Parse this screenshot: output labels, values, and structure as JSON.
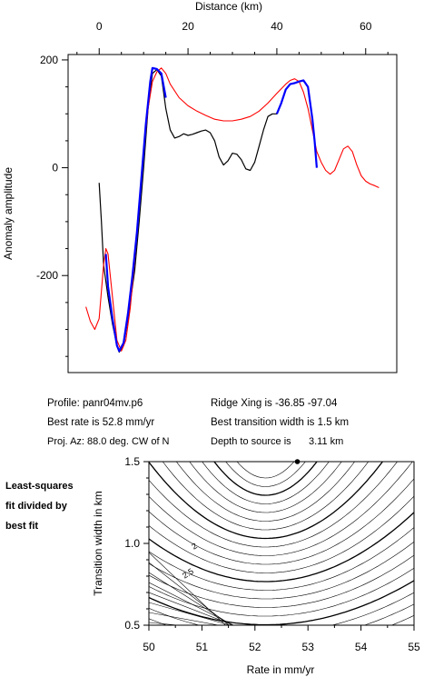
{
  "info": {
    "profile": "Profile: panr04mv.p6",
    "best_rate": "Best rate is 52.8 mm/yr",
    "proj_az": "Proj. Az: 88.0 deg. CW of N",
    "ridge_xing": "Ridge Xing is -36.85 -97.04",
    "best_width": "Best transition width is 1.5 km",
    "depth_label": "Depth to source is",
    "depth_value": "3.11 km"
  },
  "note": {
    "line1": "Least-squares",
    "line2": "fit divided by",
    "line3": "best fit"
  },
  "colors": {
    "observed": "#000000",
    "model": "#ff0000",
    "fit_window": "#0000ff",
    "contour": "#000000"
  },
  "chart_data": [
    {
      "type": "line",
      "title": "",
      "xlabel": "Distance (km)",
      "ylabel": "Anomaly amplitude",
      "xlim": [
        -7,
        67
      ],
      "ylim": [
        -380,
        210
      ],
      "xticks": [
        0,
        20,
        40,
        60
      ],
      "yticks": [
        200,
        0,
        -200
      ],
      "x_axis_position": "top",
      "series": [
        {
          "name": "",
          "color": "#000000",
          "points": [
            [
              0,
              -28
            ],
            [
              0.5,
              -100
            ],
            [
              1,
              -180
            ],
            [
              2,
              -240
            ],
            [
              3,
              -290
            ],
            [
              4,
              -330
            ],
            [
              4.5,
              -342
            ],
            [
              5.5,
              -330
            ],
            [
              6.5,
              -280
            ],
            [
              8,
              -190
            ],
            [
              9,
              -100
            ],
            [
              10,
              0
            ],
            [
              11,
              110
            ],
            [
              12,
              175
            ],
            [
              13,
              182
            ],
            [
              14,
              170
            ],
            [
              14.5,
              140
            ],
            [
              15,
              110
            ],
            [
              16,
              70
            ],
            [
              17,
              55
            ],
            [
              18,
              58
            ],
            [
              19,
              63
            ],
            [
              20,
              60
            ],
            [
              21,
              62
            ],
            [
              22,
              65
            ],
            [
              23,
              68
            ],
            [
              24,
              70
            ],
            [
              25,
              65
            ],
            [
              26,
              50
            ],
            [
              27,
              20
            ],
            [
              28,
              5
            ],
            [
              29,
              13
            ],
            [
              30,
              27
            ],
            [
              31,
              25
            ],
            [
              32,
              15
            ],
            [
              33,
              -2
            ],
            [
              34,
              -5
            ],
            [
              35,
              10
            ],
            [
              36,
              40
            ],
            [
              37,
              70
            ],
            [
              38,
              95
            ],
            [
              39,
              100
            ],
            [
              40,
              100
            ],
            [
              41,
              120
            ],
            [
              42,
              145
            ],
            [
              43,
              155
            ],
            [
              44,
              157
            ],
            [
              45,
              160
            ],
            [
              46,
              162
            ],
            [
              47,
              150
            ],
            [
              48,
              90
            ],
            [
              48.5,
              50
            ],
            [
              49,
              0
            ]
          ]
        },
        {
          "name": "",
          "color": "#ff0000",
          "points": [
            [
              -3,
              -258
            ],
            [
              -2,
              -285
            ],
            [
              -1,
              -300
            ],
            [
              0,
              -280
            ],
            [
              1,
              -180
            ],
            [
              1.5,
              -150
            ],
            [
              2,
              -160
            ],
            [
              3,
              -240
            ],
            [
              4,
              -320
            ],
            [
              5,
              -340
            ],
            [
              6,
              -320
            ],
            [
              7,
              -260
            ],
            [
              8,
              -170
            ],
            [
              9,
              -70
            ],
            [
              10,
              30
            ],
            [
              11,
              110
            ],
            [
              12,
              160
            ],
            [
              13,
              178
            ],
            [
              14,
              185
            ],
            [
              15,
              175
            ],
            [
              16,
              155
            ],
            [
              18,
              130
            ],
            [
              20,
              115
            ],
            [
              22,
              105
            ],
            [
              24,
              97
            ],
            [
              26,
              90
            ],
            [
              28,
              87
            ],
            [
              30,
              87
            ],
            [
              32,
              90
            ],
            [
              34,
              95
            ],
            [
              36,
              105
            ],
            [
              38,
              120
            ],
            [
              40,
              138
            ],
            [
              42,
              155
            ],
            [
              43,
              162
            ],
            [
              44,
              165
            ],
            [
              45,
              160
            ],
            [
              46,
              140
            ],
            [
              47,
              110
            ],
            [
              48,
              70
            ],
            [
              49,
              30
            ],
            [
              50,
              10
            ],
            [
              51,
              -5
            ],
            [
              52,
              -12
            ],
            [
              53,
              -5
            ],
            [
              54,
              15
            ],
            [
              55,
              35
            ],
            [
              56,
              40
            ],
            [
              57,
              30
            ],
            [
              58,
              5
            ],
            [
              59,
              -15
            ],
            [
              60,
              -25
            ],
            [
              61,
              -30
            ],
            [
              62,
              -33
            ],
            [
              63,
              -37
            ]
          ]
        },
        {
          "name": "",
          "color": "#0000ff",
          "points": [
            [
              1.5,
              -160
            ],
            [
              2,
              -220
            ],
            [
              3,
              -280
            ],
            [
              4,
              -330
            ],
            [
              4.5,
              -340
            ],
            [
              5.5,
              -325
            ],
            [
              6.5,
              -270
            ],
            [
              7.5,
              -200
            ],
            [
              8.5,
              -120
            ],
            [
              9.5,
              -20
            ],
            [
              10.5,
              80
            ],
            [
              11.5,
              160
            ],
            [
              12,
              185
            ],
            [
              13,
              183
            ],
            [
              14,
              175
            ],
            [
              15,
              130
            ],
            [
              40,
              100
            ],
            [
              41,
              120
            ],
            [
              42,
              145
            ],
            [
              43,
              155
            ],
            [
              44,
              157
            ],
            [
              45,
              160
            ],
            [
              46,
              162
            ],
            [
              47,
              150
            ],
            [
              48,
              90
            ],
            [
              48.5,
              50
            ],
            [
              49,
              0
            ]
          ]
        }
      ]
    },
    {
      "type": "contour",
      "title": "",
      "xlabel": "Rate in mm/yr",
      "ylabel": "Transition width in km",
      "xlim": [
        50,
        55
      ],
      "ylim": [
        0.5,
        1.5
      ],
      "xticks": [
        50,
        51,
        52,
        53,
        54,
        55
      ],
      "yticks": [
        0.5,
        1.0,
        1.5
      ],
      "contour_labels": [
        "2",
        "2.5"
      ],
      "best_fit_point": {
        "x": 52.8,
        "y": 1.5
      },
      "grid": false
    }
  ]
}
